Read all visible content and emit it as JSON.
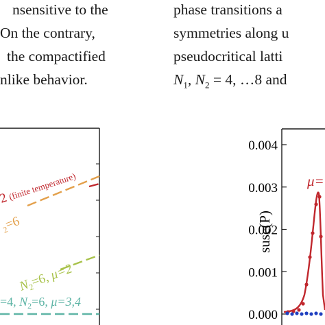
{
  "text_left": {
    "lines": [
      "nsensitive to the",
      "On the contrary,",
      "the compactified",
      "nlike behavior."
    ]
  },
  "text_right": {
    "lines": [
      "phase transitions a",
      "symmetries along u",
      "pseudocritical latti",
      "and"
    ],
    "math_prefix": "N",
    "math_sub1": "1",
    "math_mid": ", N",
    "math_sub2": "2",
    "math_tail": " = 4, …8 "
  },
  "colors": {
    "red": "#c0272d",
    "orange": "#e3a04b",
    "olive": "#a8c24a",
    "teal": "#5fb5a6",
    "blue": "#1f3fbf",
    "axis": "#1a1a1a"
  },
  "chart_left": {
    "type": "line",
    "labels": [
      {
        "id": "red",
        "text": "2",
        "note": "(finite temperature)"
      },
      {
        "id": "orange",
        "text": "=6",
        "prefix": "N",
        "sub": "2"
      },
      {
        "id": "olive",
        "text": "=6, ",
        "prefix": "N",
        "sub": "2",
        "mu": "μ=2"
      },
      {
        "id": "teal",
        "text": "=4, ",
        "prefix": "N",
        "sub": "2",
        "after": "=6, ",
        "mu": "μ=3,4"
      }
    ]
  },
  "chart_right": {
    "type": "line",
    "ylabel": "susc(P)",
    "ylim": [
      0,
      0.004
    ],
    "yticks": [
      "0.000",
      "0.001",
      "0.002",
      "0.003",
      "0.004"
    ],
    "annotation": "μ="
  }
}
